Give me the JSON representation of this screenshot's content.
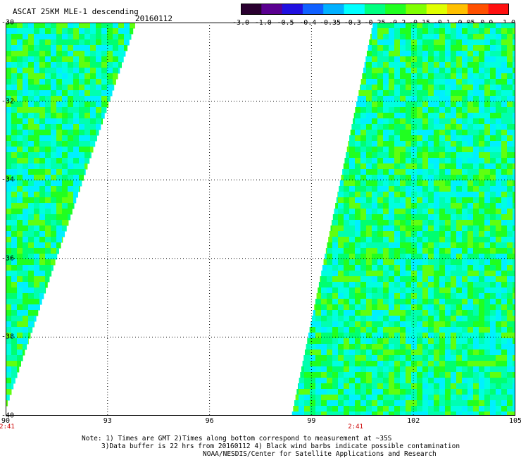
{
  "header": {
    "title": "ASCAT 25KM MLE-1 descending",
    "date": "20160112"
  },
  "colorbar": {
    "labels": [
      "-3.0",
      "-1.0",
      "-0.5",
      "-0.4",
      "-0.35",
      "-0.3",
      "-0.25",
      "-0.2",
      "-0.15",
      "-0.1",
      "-0.05",
      "0.0",
      "1.0"
    ],
    "colors": [
      "#2a0030",
      "#5a0090",
      "#2010e0",
      "#1060ff",
      "#00b0ff",
      "#00ffff",
      "#00ff80",
      "#20ff20",
      "#80ff00",
      "#e0ff00",
      "#ffc000",
      "#ff5000",
      "#ff1010"
    ]
  },
  "map": {
    "lat_labels": [
      "-30",
      "-32",
      "-34",
      "-36",
      "-38",
      "-40"
    ],
    "lon_labels": [
      "90",
      "93",
      "96",
      "99",
      "102",
      "105"
    ],
    "lat_range": [
      -40,
      -30
    ],
    "lon_range": [
      90,
      105
    ],
    "grid": true,
    "swath_colors": [
      "#00ffe0",
      "#00ffb0",
      "#00ff70",
      "#20ff20",
      "#60ff10",
      "#00f0ff"
    ]
  },
  "times": [
    {
      "label": "2:41",
      "lon": 90
    },
    {
      "label": "2:41",
      "lon": 100.3
    }
  ],
  "notes": {
    "line1": "Note: 1) Times are GMT 2)Times along bottom correspond to measurement at ~35S",
    "line2": "3)Data buffer is 22 hrs from 20160112 4) Black wind barbs indicate possible contamination",
    "line3": "NOAA/NESDIS/Center for Satellite Applications and Research"
  }
}
